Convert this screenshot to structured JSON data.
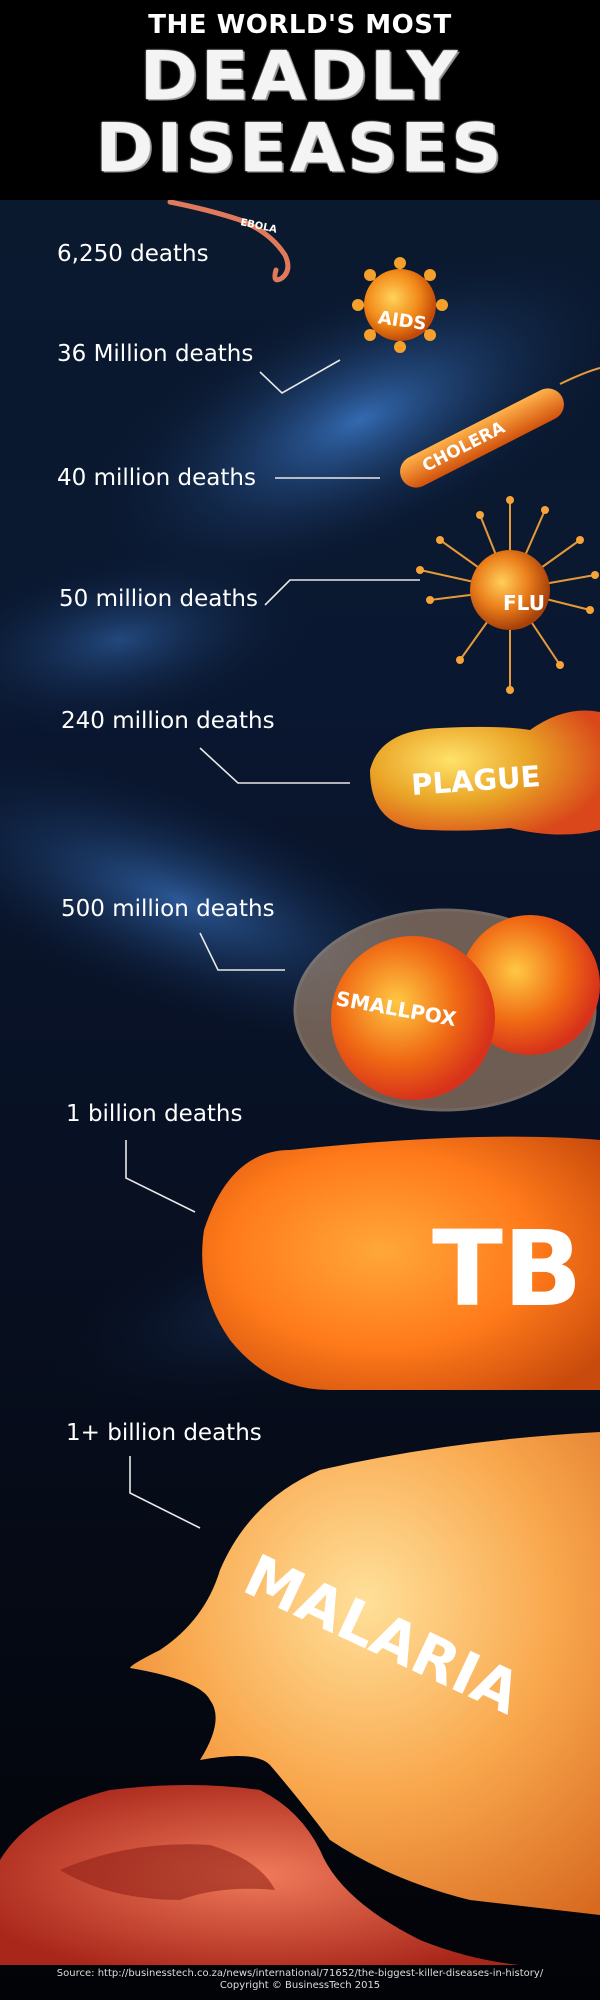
{
  "header": {
    "line1": "THE WORLD'S MOST",
    "line2": "DEADLY",
    "line3": "DISEASES"
  },
  "diseases": [
    {
      "name": "EBOLA",
      "deaths": "6,250 deaths"
    },
    {
      "name": "AIDS",
      "deaths": "36 Million deaths"
    },
    {
      "name": "CHOLERA",
      "deaths": "40 million deaths"
    },
    {
      "name": "FLU",
      "deaths": "50 million deaths"
    },
    {
      "name": "PLAGUE",
      "deaths": "240 million deaths"
    },
    {
      "name": "SMALLPOX",
      "deaths": "500 million deaths"
    },
    {
      "name": "TB",
      "deaths": "1 billion deaths"
    },
    {
      "name": "MALARIA",
      "deaths": "1+ billion deaths"
    }
  ],
  "footer": {
    "source": "Source: http://businesstech.co.za/news/international/71652/the-biggest-killer-diseases-in-history/",
    "copyright": "Copyright © BusinessTech 2015"
  }
}
